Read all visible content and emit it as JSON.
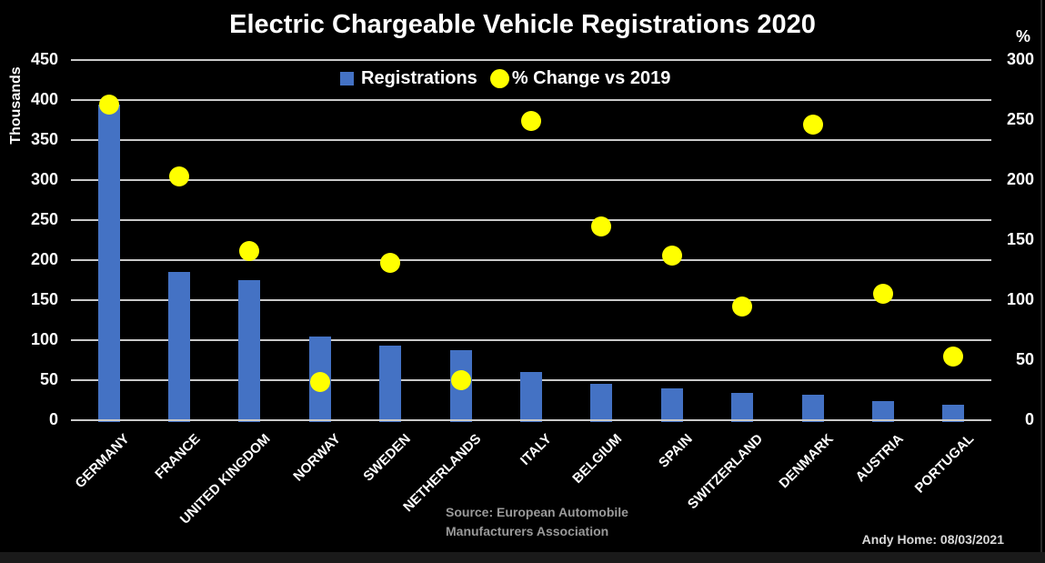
{
  "title": "Electric Chargeable Vehicle Registrations 2020",
  "left_axis": {
    "title": "Thousands",
    "ticks": [
      "0",
      "50",
      "100",
      "150",
      "200",
      "250",
      "300",
      "350",
      "400",
      "450"
    ]
  },
  "right_axis": {
    "title": "%",
    "ticks": [
      "0",
      "50",
      "100",
      "150",
      "200",
      "250",
      "300"
    ]
  },
  "legend": {
    "registrations_label": "Registrations",
    "pct_change_label": "% Change vs 2019"
  },
  "footer": {
    "source_line1": "Source: European Automobile",
    "source_line2": "Manufacturers Association",
    "credit": "Andy Home: 08/03/2021"
  },
  "colors": {
    "background": "#000000",
    "bar": "#4472c4",
    "marker": "#ffff00",
    "gridline": "#c9c9c9",
    "text": "#ffffff",
    "source_text": "#9a9a9a",
    "credit_text": "#d9d9d9"
  },
  "chart_data": {
    "type": "bar",
    "subtype": "combo: bars (left axis) + scatter markers (right axis)",
    "title": "Electric Chargeable Vehicle Registrations 2020",
    "categories": [
      "GERMANY",
      "FRANCE",
      "UNITED KINGDOM",
      "NORWAY",
      "SWEDEN",
      "NETHERLANDS",
      "ITALY",
      "BELGIUM",
      "SPAIN",
      "SWITZERLAND",
      "DENMARK",
      "AUSTRIA",
      "PORTUGAL"
    ],
    "series": [
      {
        "name": "Registrations",
        "type": "bar",
        "axis": "left",
        "unit": "thousands",
        "values": [
          394,
          185,
          175,
          105,
          93,
          88,
          60,
          45,
          40,
          34,
          32,
          24,
          19
        ]
      },
      {
        "name": "% Change vs 2019",
        "type": "scatter",
        "axis": "right",
        "unit": "%",
        "values": [
          263,
          203,
          141,
          32,
          131,
          33,
          249,
          161,
          137,
          95,
          246,
          105,
          53
        ]
      }
    ],
    "left_ylabel": "Thousands",
    "right_ylabel": "%",
    "left_ylim": [
      0,
      450
    ],
    "right_ylim": [
      0,
      300
    ],
    "left_tick_step": 50,
    "right_tick_step": 50,
    "grid": "horizontal",
    "legend_position": "top-center",
    "background": "black"
  }
}
